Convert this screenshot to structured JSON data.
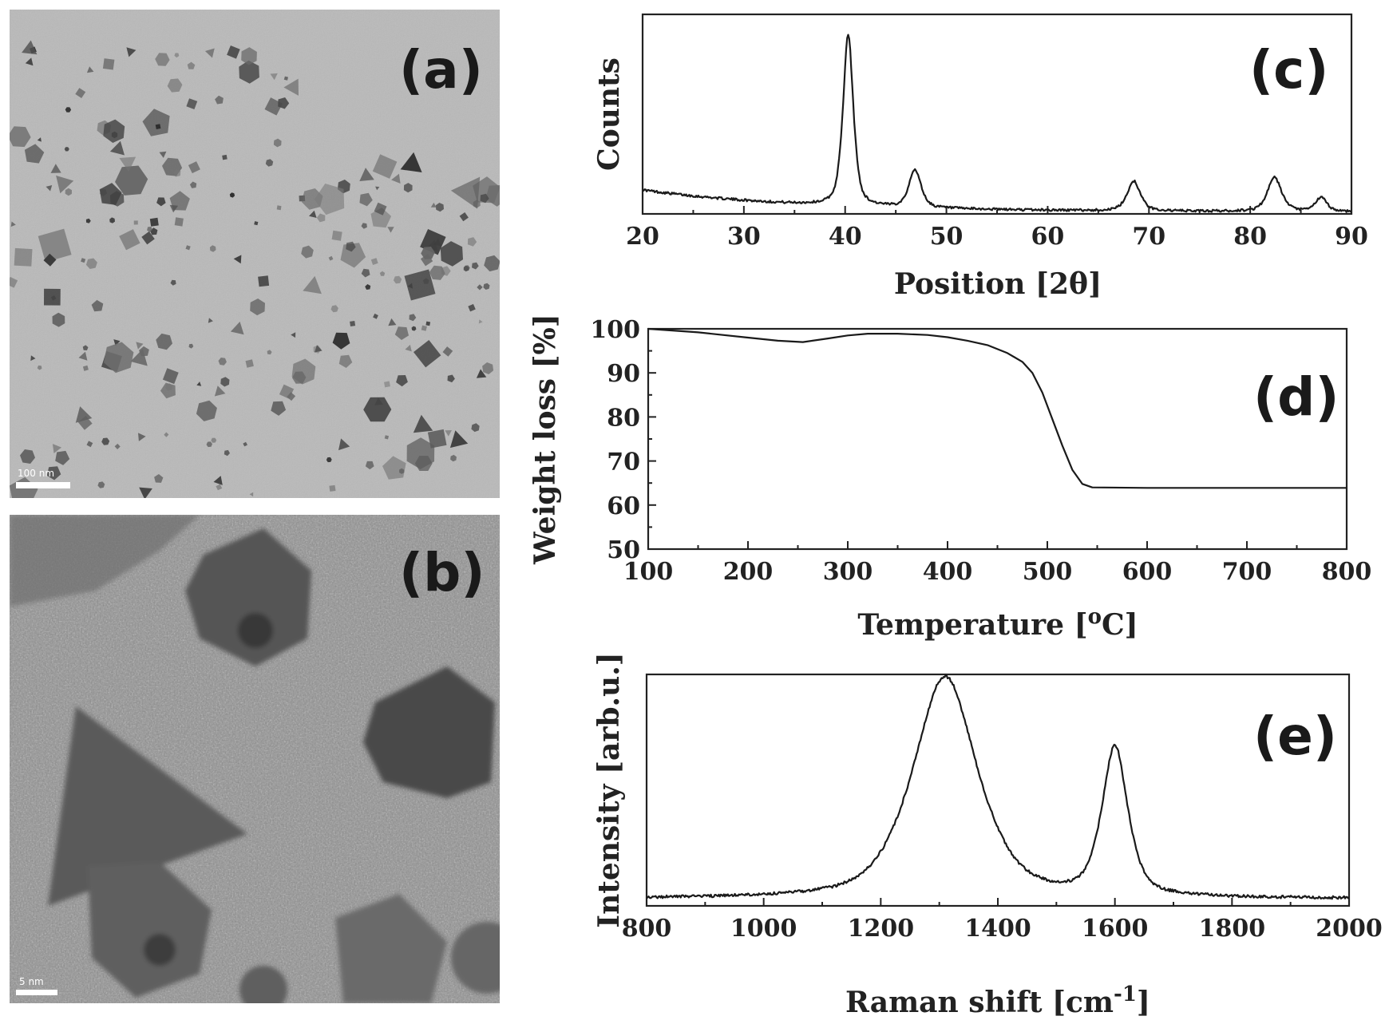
{
  "panels": {
    "a": {
      "letter": "(a)",
      "scale_bar": "100 nm"
    },
    "b": {
      "letter": "(b)",
      "scale_bar": "5 nm"
    }
  },
  "chart_data": [
    {
      "id": "c",
      "letter": "(c)",
      "type": "line",
      "xlabel": "Position [2θ]",
      "ylabel": "Counts",
      "xlim": [
        20,
        90
      ],
      "ylim": [
        0,
        1
      ],
      "xticks": [
        20,
        30,
        40,
        50,
        60,
        70,
        80,
        90
      ],
      "yticks": [],
      "baseline": {
        "start": 0.12,
        "end": 0.01,
        "decay": 18
      },
      "peaks": [
        {
          "center": 40.3,
          "height": 0.86,
          "width": 0.55
        },
        {
          "center": 46.9,
          "height": 0.19,
          "width": 0.65
        },
        {
          "center": 68.5,
          "height": 0.15,
          "width": 0.7
        },
        {
          "center": 82.4,
          "height": 0.17,
          "width": 0.75
        },
        {
          "center": 87.0,
          "height": 0.07,
          "width": 0.6
        }
      ],
      "noise": 0.006
    },
    {
      "id": "d",
      "letter": "(d)",
      "type": "line",
      "xlabel": "Temperature [°C]",
      "xlabel_parts": [
        "Temperature [",
        "o",
        "C]"
      ],
      "ylabel": "Weight loss [%]",
      "xlim": [
        100,
        800
      ],
      "ylim": [
        50,
        100
      ],
      "xticks": [
        100,
        200,
        300,
        400,
        500,
        600,
        700,
        800
      ],
      "yticks": [
        50,
        60,
        70,
        80,
        90,
        100
      ],
      "points": [
        [
          100,
          100
        ],
        [
          150,
          99.2
        ],
        [
          200,
          98.0
        ],
        [
          230,
          97.3
        ],
        [
          255,
          97.0
        ],
        [
          280,
          97.8
        ],
        [
          300,
          98.5
        ],
        [
          320,
          98.9
        ],
        [
          350,
          98.9
        ],
        [
          380,
          98.6
        ],
        [
          400,
          98.1
        ],
        [
          420,
          97.3
        ],
        [
          440,
          96.3
        ],
        [
          460,
          94.5
        ],
        [
          475,
          92.5
        ],
        [
          485,
          90.0
        ],
        [
          495,
          85.5
        ],
        [
          505,
          79.5
        ],
        [
          515,
          73.5
        ],
        [
          525,
          68.0
        ],
        [
          535,
          64.8
        ],
        [
          545,
          64.0
        ],
        [
          600,
          63.9
        ],
        [
          700,
          63.9
        ],
        [
          800,
          63.9
        ]
      ]
    },
    {
      "id": "e",
      "letter": "(e)",
      "type": "line",
      "xlabel": "Raman shift [cm⁻¹]",
      "xlabel_parts": [
        "Raman shift [cm",
        "-1",
        "]"
      ],
      "ylabel": "Intensity [arb.u.]",
      "xlim": [
        800,
        2000
      ],
      "ylim": [
        0,
        1
      ],
      "xticks": [
        800,
        1000,
        1200,
        1400,
        1600,
        1800,
        2000
      ],
      "yticks": [],
      "baseline": {
        "start": 0.03,
        "end": 0.03,
        "decay": 1
      },
      "peaks": [
        {
          "center": 1310,
          "height": 0.96,
          "width": 60
        },
        {
          "center": 1600,
          "height": 0.64,
          "width": 24
        }
      ],
      "noise": 0.006
    }
  ]
}
